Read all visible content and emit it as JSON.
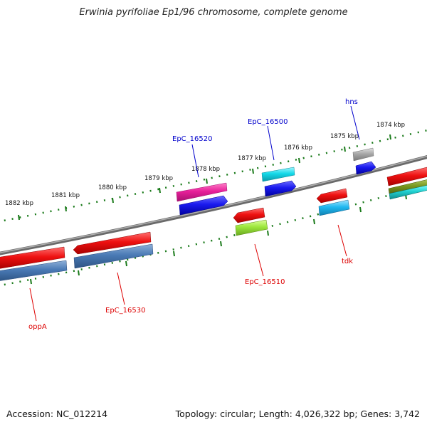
{
  "title": "Erwinia pyrifoliae Ep1/96 chromosome, complete genome",
  "footer": {
    "accession": "Accession: NC_012214",
    "summary": "Topology: circular; Length: 4,026,322 bp; Genes: 3,742"
  },
  "ruler_labels": [
    "1874 kbp",
    "1875 kbp",
    "1876 kbp",
    "1877 kbp",
    "1878 kbp",
    "1879 kbp",
    "1880 kbp",
    "1881 kbp",
    "1882 kbp"
  ],
  "gene_labels": {
    "hns": "hns",
    "epc16500": "EpC_16500",
    "epc16520": "EpC_16520",
    "epc16510": "EpC_16510",
    "tdk": "tdk",
    "epc16530": "EpC_16530",
    "oppa": "oppA"
  },
  "colors": {
    "backbone": "#808080",
    "ruler_ticks": "#1a7a1a",
    "label_forward": "#0000cc",
    "label_reverse": "#dd0000",
    "red": "#ee1111",
    "blue": "#1a1aee",
    "steel_blue": "#4a7ab5",
    "magenta": "#e8209a",
    "cyan": "#14d8e8",
    "light_green": "#9ce63c",
    "gray": "#a8a8a8",
    "olive": "#7a9a20",
    "teal": "#20b0b0"
  }
}
